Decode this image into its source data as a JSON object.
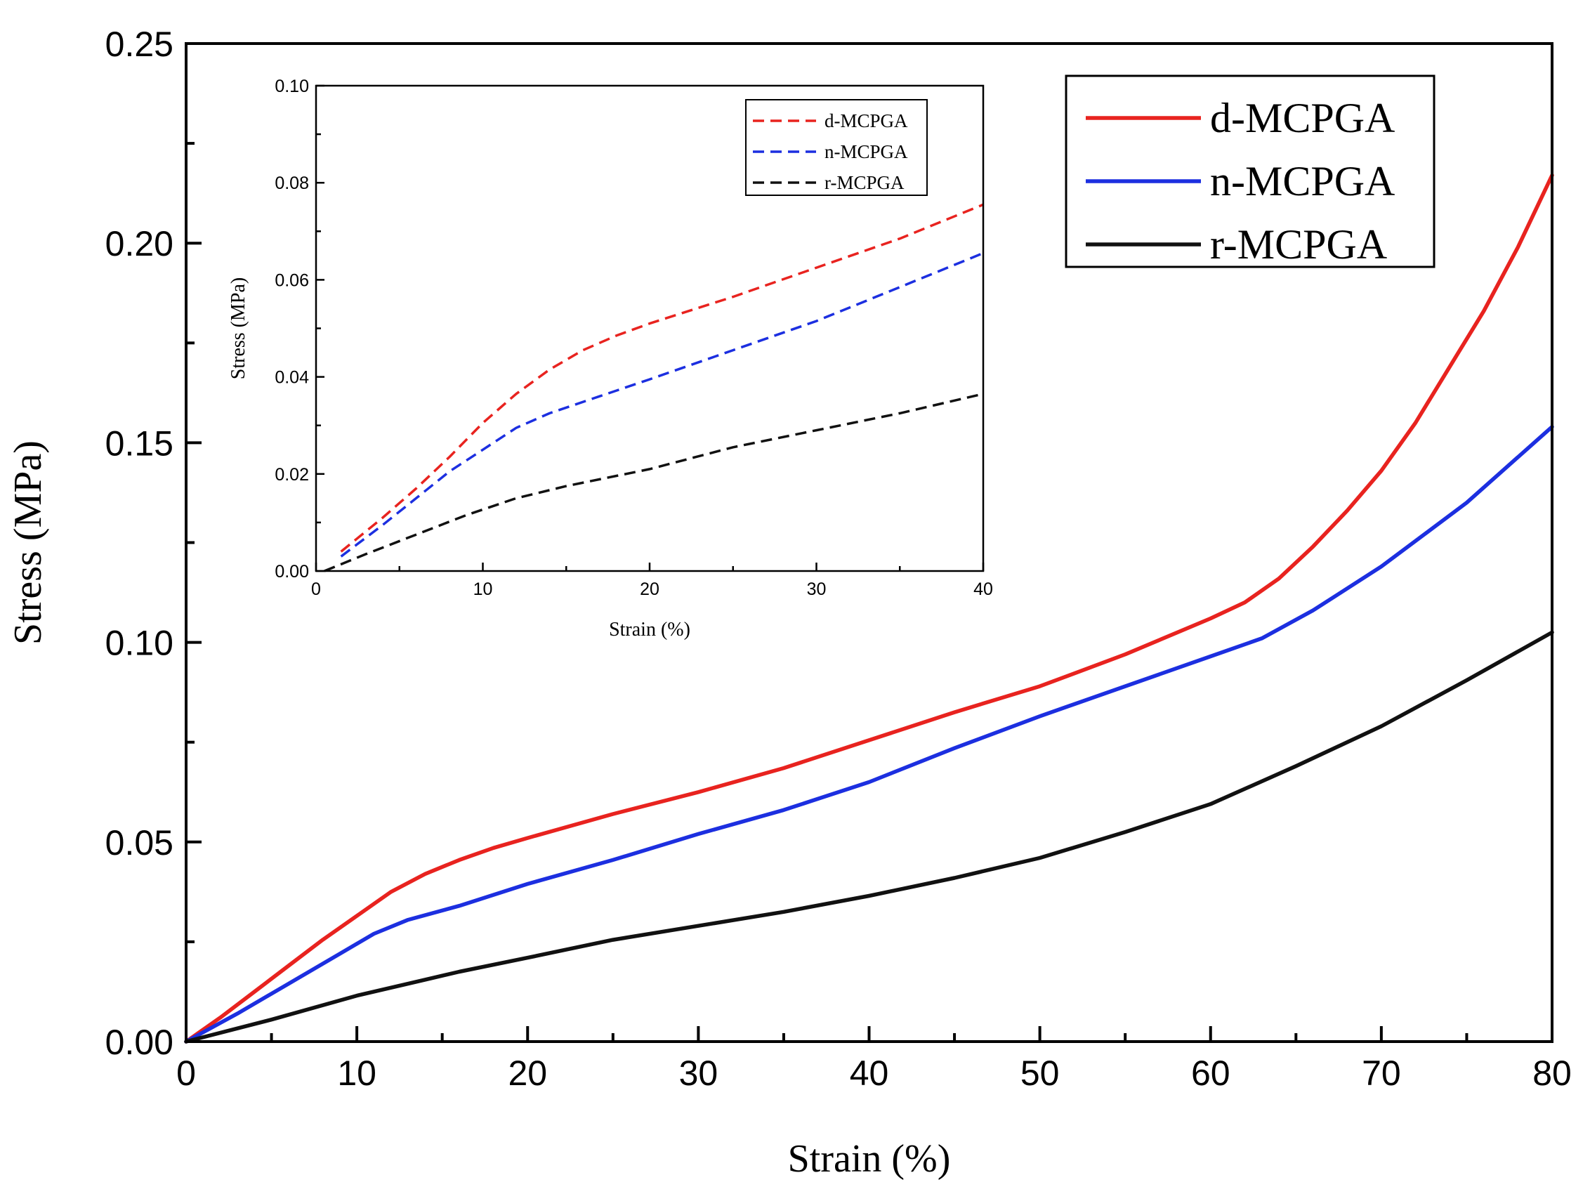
{
  "chart_data": [
    {
      "type": "line",
      "title": "",
      "xlabel": "Strain (%)",
      "ylabel": "Stress (MPa)",
      "xlim": [
        0,
        80
      ],
      "ylim": [
        0,
        0.25
      ],
      "x_ticks": [
        "0",
        "10",
        "20",
        "30",
        "40",
        "50",
        "60",
        "70",
        "80"
      ],
      "y_ticks": [
        "0.00",
        "0.05",
        "0.10",
        "0.15",
        "0.20",
        "0.25"
      ],
      "legend_placement": "top-right",
      "grid": false,
      "series": [
        {
          "name": "d-MCPGA",
          "color": "#e8231f",
          "line_style": "solid",
          "points": [
            [
              0,
              0
            ],
            [
              2,
              0.006
            ],
            [
              4,
              0.0125
            ],
            [
              6,
              0.019
            ],
            [
              8,
              0.0255
            ],
            [
              10,
              0.0315
            ],
            [
              12,
              0.0375
            ],
            [
              14,
              0.042
            ],
            [
              16,
              0.0455
            ],
            [
              18,
              0.0485
            ],
            [
              20,
              0.051
            ],
            [
              25,
              0.057
            ],
            [
              30,
              0.0625
            ],
            [
              35,
              0.0685
            ],
            [
              40,
              0.0755
            ],
            [
              45,
              0.0825
            ],
            [
              50,
              0.089
            ],
            [
              55,
              0.097
            ],
            [
              60,
              0.106
            ],
            [
              62,
              0.11
            ],
            [
              64,
              0.116
            ],
            [
              66,
              0.124
            ],
            [
              68,
              0.133
            ],
            [
              70,
              0.143
            ],
            [
              72,
              0.155
            ],
            [
              74,
              0.169
            ],
            [
              76,
              0.183
            ],
            [
              78,
              0.199
            ],
            [
              80,
              0.217
            ]
          ]
        },
        {
          "name": "n-MCPGA",
          "color": "#1c2fe0",
          "line_style": "solid",
          "points": [
            [
              0,
              0
            ],
            [
              3,
              0.007
            ],
            [
              6,
              0.0145
            ],
            [
              9,
              0.022
            ],
            [
              11,
              0.027
            ],
            [
              13,
              0.0305
            ],
            [
              16,
              0.034
            ],
            [
              20,
              0.0395
            ],
            [
              25,
              0.0455
            ],
            [
              30,
              0.052
            ],
            [
              35,
              0.058
            ],
            [
              40,
              0.065
            ],
            [
              45,
              0.0735
            ],
            [
              50,
              0.0815
            ],
            [
              55,
              0.089
            ],
            [
              60,
              0.0965
            ],
            [
              63,
              0.101
            ],
            [
              66,
              0.108
            ],
            [
              70,
              0.119
            ],
            [
              75,
              0.135
            ],
            [
              80,
              0.154
            ]
          ]
        },
        {
          "name": "r-MCPGA",
          "color": "#111111",
          "line_style": "solid",
          "points": [
            [
              0,
              0
            ],
            [
              5,
              0.0055
            ],
            [
              10,
              0.0115
            ],
            [
              13,
              0.0145
            ],
            [
              16,
              0.0175
            ],
            [
              20,
              0.021
            ],
            [
              25,
              0.0255
            ],
            [
              30,
              0.029
            ],
            [
              35,
              0.0325
            ],
            [
              40,
              0.0365
            ],
            [
              45,
              0.041
            ],
            [
              50,
              0.046
            ],
            [
              55,
              0.0525
            ],
            [
              60,
              0.0595
            ],
            [
              65,
              0.069
            ],
            [
              70,
              0.079
            ],
            [
              75,
              0.0905
            ],
            [
              80,
              0.1025
            ]
          ]
        }
      ]
    },
    {
      "type": "line",
      "title": "",
      "xlabel": "Strain (%)",
      "ylabel": "Stress (MPa)",
      "xlim": [
        0,
        40
      ],
      "ylim": [
        0,
        0.1
      ],
      "x_ticks": [
        "0",
        "10",
        "20",
        "30",
        "40"
      ],
      "y_ticks": [
        "0.00",
        "0.02",
        "0.04",
        "0.06",
        "0.08",
        "0.10"
      ],
      "legend_placement": "top-right",
      "grid": false,
      "series": [
        {
          "name": "d-MCPGA",
          "color": "#e8231f",
          "line_style": "dashed",
          "points": [
            [
              1.5,
              0.004
            ],
            [
              4,
              0.011
            ],
            [
              6,
              0.017
            ],
            [
              8,
              0.0235
            ],
            [
              10,
              0.0305
            ],
            [
              12,
              0.0365
            ],
            [
              14,
              0.0415
            ],
            [
              16,
              0.0455
            ],
            [
              18,
              0.0485
            ],
            [
              20,
              0.051
            ],
            [
              25,
              0.0565
            ],
            [
              30,
              0.0625
            ],
            [
              35,
              0.0685
            ],
            [
              40,
              0.0755
            ]
          ]
        },
        {
          "name": "n-MCPGA",
          "color": "#1c2fe0",
          "line_style": "dashed",
          "points": [
            [
              1.5,
              0.003
            ],
            [
              4,
              0.0095
            ],
            [
              6,
              0.015
            ],
            [
              8,
              0.0205
            ],
            [
              10,
              0.025
            ],
            [
              12,
              0.0295
            ],
            [
              14,
              0.0325
            ],
            [
              17,
              0.036
            ],
            [
              20,
              0.0395
            ],
            [
              25,
              0.0455
            ],
            [
              30,
              0.0515
            ],
            [
              35,
              0.0585
            ],
            [
              40,
              0.0655
            ]
          ]
        },
        {
          "name": "r-MCPGA",
          "color": "#111111",
          "line_style": "dashed",
          "points": [
            [
              0.5,
              0
            ],
            [
              3,
              0.0035
            ],
            [
              6,
              0.0075
            ],
            [
              9,
              0.0115
            ],
            [
              12,
              0.015
            ],
            [
              15,
              0.0175
            ],
            [
              20,
              0.021
            ],
            [
              25,
              0.0255
            ],
            [
              30,
              0.029
            ],
            [
              35,
              0.0325
            ],
            [
              40,
              0.0365
            ]
          ]
        }
      ]
    }
  ]
}
